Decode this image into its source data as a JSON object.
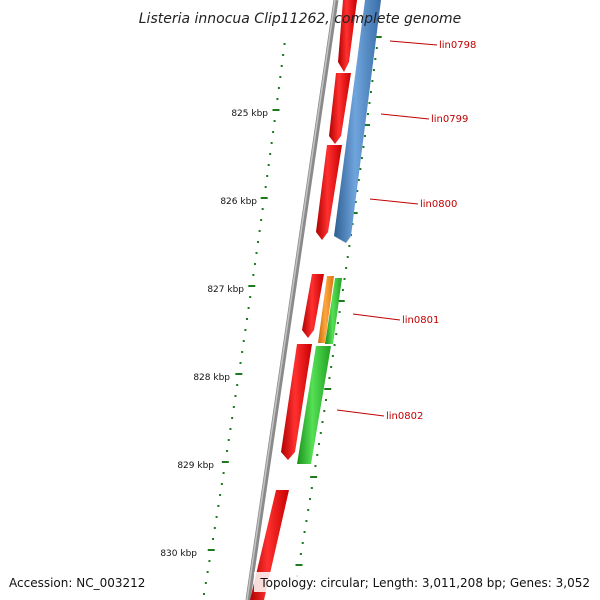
{
  "title": "Listeria innocua Clip11262, complete genome",
  "footer": {
    "accession": "Accession: NC_003212",
    "topology": "Topology: circular; Length: 3,011,208 bp; Genes: 3,052"
  },
  "kbp_labels": [
    "825 kbp",
    "826 kbp",
    "827 kbp",
    "828 kbp",
    "829 kbp",
    "830 kbp"
  ],
  "gene_labels": [
    "lin0798",
    "lin0799",
    "lin0800",
    "lin0801",
    "lin0802"
  ],
  "colors": {
    "cds_forward": "#ee1111",
    "cds_reverse": "#4a86c8",
    "rna_orange": "#f08a1c",
    "rna_green": "#33cc33",
    "backbone": "#888888",
    "ruler": "#1e7a1e",
    "label": "#c00000"
  }
}
